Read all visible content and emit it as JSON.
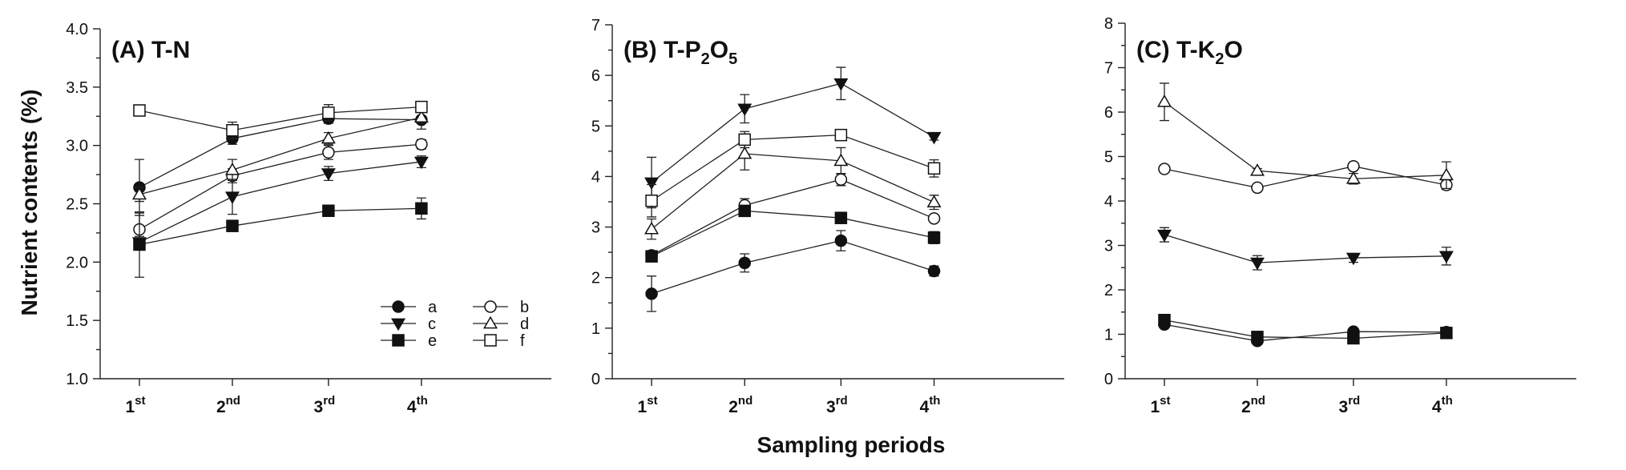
{
  "chart_data": [
    {
      "type": "line",
      "title": "(A) T-N",
      "ylabel": "Nutrient contents (%)",
      "xlabel": "Sampling periods",
      "categories": [
        "1st",
        "2nd",
        "3rd",
        "4th"
      ],
      "ylim": [
        1.0,
        4.0
      ],
      "yticks": [
        "1.0",
        "1.5",
        "2.0",
        "2.5",
        "3.0",
        "3.5",
        "4.0"
      ],
      "series": [
        {
          "name": "a",
          "values": [
            2.64,
            3.06,
            3.23,
            3.22
          ],
          "errors": [
            0.24,
            0.05,
            0.04,
            0.08
          ]
        },
        {
          "name": "b",
          "values": [
            2.28,
            2.74,
            2.94,
            3.01
          ],
          "errors": [
            0.14,
            0.06,
            0.06,
            0.04
          ]
        },
        {
          "name": "c",
          "values": [
            2.17,
            2.56,
            2.76,
            2.86
          ],
          "errors": [
            0.05,
            0.15,
            0.06,
            0.05
          ]
        },
        {
          "name": "d",
          "values": [
            2.58,
            2.79,
            3.06,
            3.24
          ],
          "errors": [
            0.06,
            0.09,
            0.05,
            0.05
          ]
        },
        {
          "name": "e",
          "values": [
            2.15,
            2.31,
            2.44,
            2.46
          ],
          "errors": [
            0.28,
            0.04,
            0.03,
            0.09
          ]
        },
        {
          "name": "f",
          "values": [
            3.3,
            3.13,
            3.28,
            3.33
          ],
          "errors": [
            0.03,
            0.07,
            0.07,
            0.04
          ]
        }
      ]
    },
    {
      "type": "line",
      "title": "(B) T-P2O5",
      "categories": [
        "1st",
        "2nd",
        "3rd",
        "4th"
      ],
      "ylim": [
        0,
        7
      ],
      "yticks": [
        "0",
        "1",
        "2",
        "3",
        "4",
        "5",
        "6",
        "7"
      ],
      "series": [
        {
          "name": "a",
          "values": [
            1.68,
            2.29,
            2.73,
            2.13
          ],
          "errors": [
            0.35,
            0.18,
            0.2,
            0.1
          ]
        },
        {
          "name": "b",
          "values": [
            2.44,
            3.43,
            3.94,
            3.17
          ],
          "errors": [
            0.06,
            0.13,
            0.12,
            0.06
          ]
        },
        {
          "name": "c",
          "values": [
            3.88,
            5.34,
            5.84,
            4.78
          ],
          "errors": [
            0.5,
            0.28,
            0.32,
            0.06
          ]
        },
        {
          "name": "d",
          "values": [
            2.96,
            4.45,
            4.31,
            3.49
          ],
          "errors": [
            0.2,
            0.32,
            0.26,
            0.14
          ]
        },
        {
          "name": "e",
          "values": [
            2.42,
            3.32,
            3.18,
            2.79
          ],
          "errors": [
            0.04,
            0.07,
            0.06,
            0.12
          ]
        },
        {
          "name": "f",
          "values": [
            3.52,
            4.73,
            4.82,
            4.16
          ],
          "errors": [
            0.32,
            0.16,
            0.08,
            0.17
          ]
        }
      ]
    },
    {
      "type": "line",
      "title": "(C) T-K2O",
      "categories": [
        "1st",
        "2nd",
        "3rd",
        "4th"
      ],
      "ylim": [
        0,
        8
      ],
      "yticks": [
        "0",
        "1",
        "2",
        "3",
        "4",
        "5",
        "6",
        "7",
        "8"
      ],
      "series": [
        {
          "name": "a",
          "values": [
            1.22,
            0.85,
            1.06,
            1.05
          ],
          "errors": [
            0.04,
            0.04,
            0.03,
            0.05
          ]
        },
        {
          "name": "b",
          "values": [
            4.72,
            4.3,
            4.78,
            4.36
          ],
          "errors": [
            0.04,
            0.04,
            0.04,
            0.1
          ]
        },
        {
          "name": "c",
          "values": [
            3.24,
            2.61,
            2.72,
            2.76
          ],
          "errors": [
            0.16,
            0.16,
            0.1,
            0.2
          ]
        },
        {
          "name": "d",
          "values": [
            6.23,
            4.68,
            4.5,
            4.58
          ],
          "errors": [
            0.42,
            0.05,
            0.12,
            0.3
          ]
        },
        {
          "name": "e",
          "values": [
            1.32,
            0.94,
            0.91,
            1.03
          ],
          "errors": [
            0.03,
            0.03,
            0.03,
            0.03
          ]
        },
        {
          "name": "f",
          "values": [
            null,
            null,
            null,
            null
          ],
          "errors": [
            null,
            null,
            null,
            null
          ]
        }
      ]
    }
  ],
  "panels": [
    {
      "title_main": "(A) T-N",
      "title_parts": [
        [
          "(A) T-N",
          "n"
        ]
      ]
    },
    {
      "title_main": "(B) T-P2O5",
      "title_parts": [
        [
          "(B) T-P",
          "n"
        ],
        [
          "2",
          "s"
        ],
        [
          "O",
          "n"
        ],
        [
          "5",
          "s"
        ]
      ]
    },
    {
      "title_main": "(C) T-K2O",
      "title_parts": [
        [
          "(C) T-K",
          "n"
        ],
        [
          "2",
          "s"
        ],
        [
          "O",
          "n"
        ]
      ]
    }
  ],
  "xticks": [
    {
      "num": "1",
      "sup": "st"
    },
    {
      "num": "2",
      "sup": "nd"
    },
    {
      "num": "3",
      "sup": "rd"
    },
    {
      "num": "4",
      "sup": "th"
    }
  ],
  "legend": {
    "items": [
      {
        "name": "a",
        "marker": "circle-filled"
      },
      {
        "name": "b",
        "marker": "circle-open"
      },
      {
        "name": "c",
        "marker": "triangle-down-filled"
      },
      {
        "name": "d",
        "marker": "triangle-up-open"
      },
      {
        "name": "e",
        "marker": "square-filled"
      },
      {
        "name": "f",
        "marker": "square-open"
      }
    ]
  },
  "labels": {
    "ylabel": "Nutrient contents (%)",
    "xlabel": "Sampling periods"
  }
}
